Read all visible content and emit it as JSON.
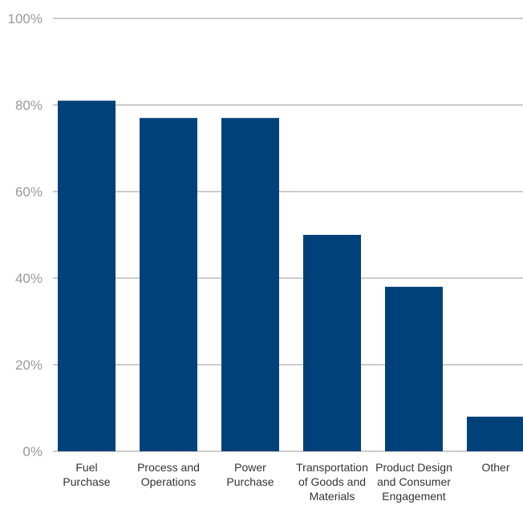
{
  "chart_data": {
    "type": "bar",
    "categories": [
      [
        "Fuel",
        "Purchase"
      ],
      [
        "Process and",
        "Operations"
      ],
      [
        "Power",
        "Purchase"
      ],
      [
        "Transportation",
        "of Goods and",
        "Materials"
      ],
      [
        "Product Design",
        "and Consumer",
        "Engagement"
      ],
      [
        "Other"
      ]
    ],
    "values": [
      81,
      77,
      77,
      50,
      38,
      8
    ],
    "ylim": [
      0,
      100
    ],
    "yticks": [
      0,
      20,
      40,
      60,
      80,
      100
    ],
    "ytick_labels": [
      "0%",
      "20%",
      "40%",
      "60%",
      "80%",
      "100%"
    ],
    "grid": true,
    "legend": "none",
    "bar_color": "#00417a",
    "grid_color": "#9a9a9a",
    "title": "",
    "xlabel": "",
    "ylabel": ""
  }
}
